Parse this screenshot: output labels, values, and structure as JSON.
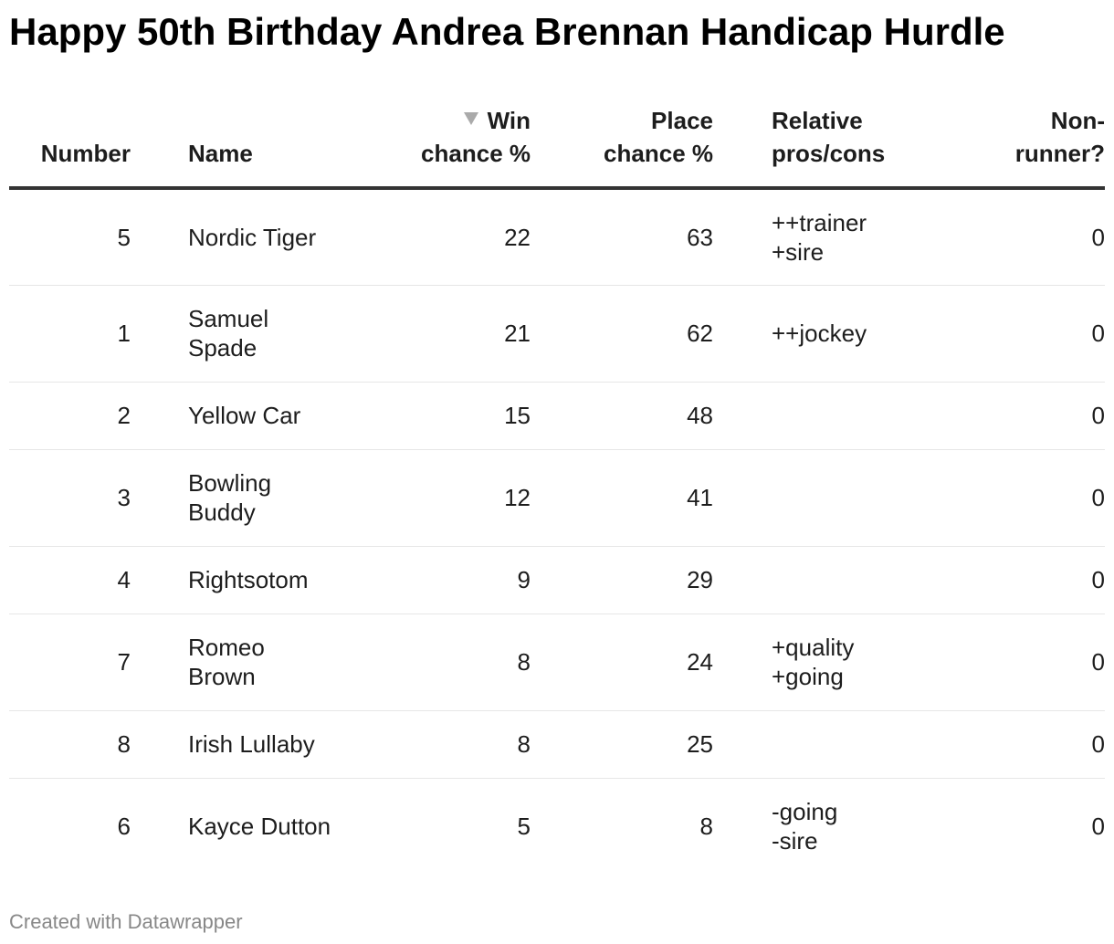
{
  "chart_data": {
    "type": "table",
    "title": "Happy 50th Birthday Andrea Brennan Handicap Hurdle",
    "columns": [
      "Number",
      "Name",
      "Win chance %",
      "Place chance %",
      "Relative pros/cons",
      "Non-runner?"
    ],
    "sorted_by": "Win chance %",
    "sort_direction": "descending",
    "rows": [
      {
        "number": "5",
        "name": "Nordic Tiger",
        "win": "22",
        "place": "63",
        "relative": "++trainer\n+sire",
        "nonrunner": "0"
      },
      {
        "number": "1",
        "name": "Samuel\nSpade",
        "win": "21",
        "place": "62",
        "relative": "++jockey",
        "nonrunner": "0"
      },
      {
        "number": "2",
        "name": "Yellow Car",
        "win": "15",
        "place": "48",
        "relative": "",
        "nonrunner": "0"
      },
      {
        "number": "3",
        "name": "Bowling\nBuddy",
        "win": "12",
        "place": "41",
        "relative": "",
        "nonrunner": "0"
      },
      {
        "number": "4",
        "name": "Rightsotom",
        "win": "9",
        "place": "29",
        "relative": "",
        "nonrunner": "0"
      },
      {
        "number": "7",
        "name": "Romeo\nBrown",
        "win": "8",
        "place": "24",
        "relative": "+quality\n+going",
        "nonrunner": "0"
      },
      {
        "number": "8",
        "name": "Irish Lullaby",
        "win": "8",
        "place": "25",
        "relative": "",
        "nonrunner": "0"
      },
      {
        "number": "6",
        "name": "Kayce Dutton",
        "win": "5",
        "place": "8",
        "relative": "-going\n-sire",
        "nonrunner": "0"
      }
    ]
  },
  "header": {
    "number": "Number",
    "name": "Name",
    "win_line1": "Win",
    "win_line2": "chance %",
    "place_line1": "Place",
    "place_line2": "chance %",
    "relative_line1": "Relative",
    "relative_line2": "pros/cons",
    "nonrunner_line1": "Non-",
    "nonrunner_line2": "runner?"
  },
  "sort_icon": "sort-descending-triangle-icon",
  "credit": "Created with Datawrapper",
  "colors": {
    "text": "#1d1d1d",
    "header_rule": "#333333",
    "row_rule": "#e6e6e6",
    "sort_icon": "#aaaaaa",
    "credit": "#888888"
  }
}
